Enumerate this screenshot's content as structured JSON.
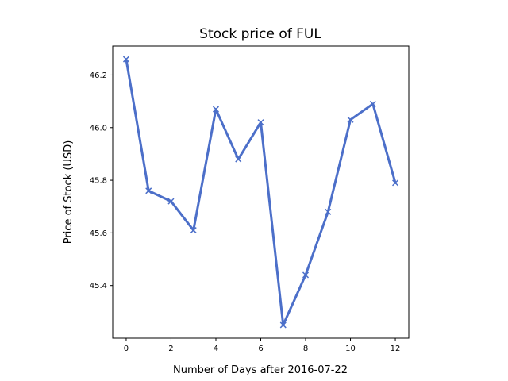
{
  "chart_data": {
    "type": "line",
    "title": "Stock price of FUL",
    "xlabel": "Number of Days after 2016-07-22",
    "ylabel": "Price of Stock (USD)",
    "x": [
      0,
      1,
      2,
      3,
      4,
      5,
      6,
      7,
      8,
      9,
      10,
      11,
      12
    ],
    "series": [
      {
        "values": [
          46.26,
          45.76,
          45.72,
          45.61,
          46.07,
          45.88,
          46.02,
          45.25,
          45.44,
          45.68,
          46.03,
          46.09,
          45.79
        ],
        "color": "#4c6fc9",
        "marker": "x"
      }
    ],
    "xlim": [
      -0.6,
      12.6
    ],
    "ylim": [
      45.2,
      46.31
    ],
    "xticks": [
      0,
      2,
      4,
      6,
      8,
      10,
      12
    ],
    "yticks": [
      45.4,
      45.6,
      45.8,
      46.0,
      46.2
    ],
    "ytick_labels": [
      "45.4",
      "45.6",
      "45.8",
      "46.0",
      "46.2"
    ],
    "grid": false,
    "legend": "none"
  }
}
